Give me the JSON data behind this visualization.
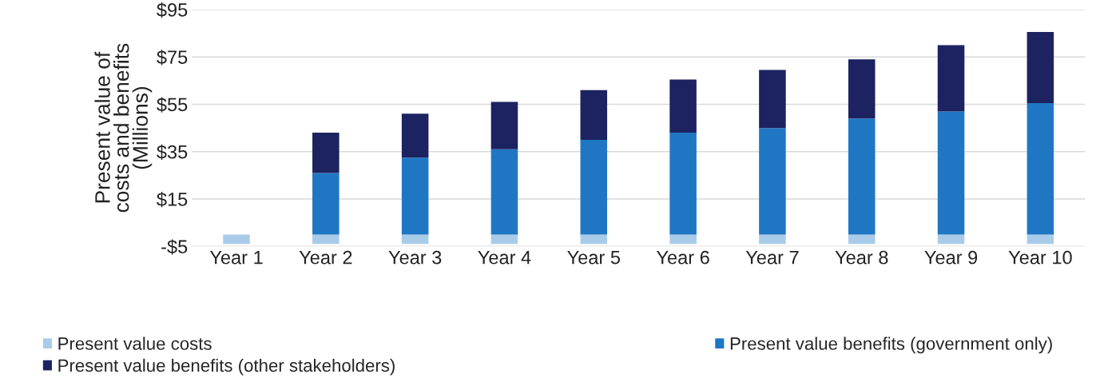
{
  "chart_data": {
    "type": "bar",
    "stacked": true,
    "ylabel": "Present value of\ncosts and benefits\n(Millions)",
    "categories": [
      "Year 1",
      "Year 2",
      "Year 3",
      "Year 4",
      "Year 5",
      "Year 6",
      "Year 7",
      "Year 8",
      "Year 9",
      "Year 10"
    ],
    "series": [
      {
        "name": "Present value costs",
        "color": "#a9cbea",
        "values": [
          -4,
          -4,
          -4,
          -4,
          -4,
          -4,
          -4,
          -4,
          -4,
          -4
        ]
      },
      {
        "name": "Present value benefits (government only)",
        "color": "#1f77c4",
        "values": [
          0,
          26,
          32.5,
          36,
          40,
          43,
          45,
          49,
          52,
          55.5
        ]
      },
      {
        "name": "Present value benefits (other stakeholders)",
        "color": "#1c2360",
        "values": [
          0,
          17,
          18.5,
          20,
          21,
          22.5,
          24.5,
          25,
          28,
          30
        ]
      }
    ],
    "ylim": [
      -5,
      95
    ],
    "yticks": [
      {
        "value": -5,
        "label": "-$5"
      },
      {
        "value": 15,
        "label": "$15"
      },
      {
        "value": 35,
        "label": "$35"
      },
      {
        "value": 55,
        "label": "$55"
      },
      {
        "value": 75,
        "label": "$75"
      },
      {
        "value": 95,
        "label": "$95"
      }
    ],
    "grid": "y",
    "legend": "bottom"
  }
}
